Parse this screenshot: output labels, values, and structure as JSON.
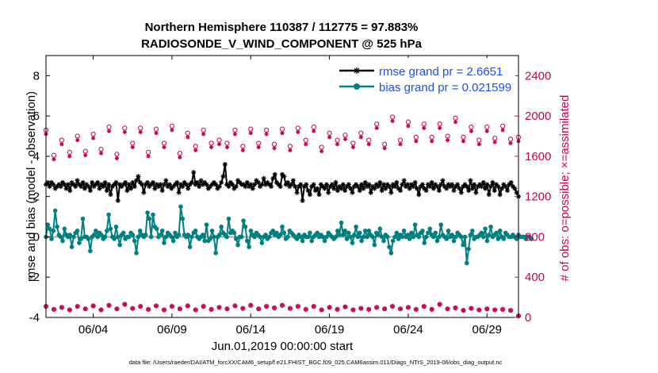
{
  "chart_data": {
    "type": "line",
    "title": "Northern Hemisphere 110387 / 112775 = 97.883%",
    "subtitle": "RADIOSONDE_V_WIND_COMPONENT @ 525 hPa",
    "xlabel": "Jun.01,2019 00:00:00 start",
    "ylabel": "rmse and bias (model - observation)",
    "y2label": "# of obs: o=possible; ×=assimilated",
    "footnote": "data file: /Users/raeder/DAI/ATM_forcXX/CAM6_setup/f.e21.FHIST_BGC.f09_025.CAM6assim.011/Diags_NTrS_2019-06/obs_diag_output.nc",
    "xlim": [
      1.0,
      31.0
    ],
    "ylim": [
      -4,
      9
    ],
    "y2lim": [
      0,
      2600
    ],
    "x_ticks": [
      4,
      9,
      14,
      19,
      24,
      29
    ],
    "x_tick_labels": [
      "06/04",
      "06/09",
      "06/14",
      "06/19",
      "06/24",
      "06/29"
    ],
    "y_ticks": [
      -4,
      -2,
      0,
      2,
      4,
      6,
      8
    ],
    "y_tick_labels": [
      "-4",
      "-2",
      "0",
      "2",
      "4",
      "6",
      "8"
    ],
    "y2_ticks": [
      0,
      400,
      800,
      1200,
      1600,
      2000,
      2400
    ],
    "y2_tick_labels": [
      "0",
      "400",
      "800",
      "1200",
      "1600",
      "2000",
      "2400"
    ],
    "colors": {
      "rmse": "#000000",
      "bias": "#008080",
      "obs": "#c8004f",
      "zero_line": "#aaaaaa",
      "legend_text": "#1f4fe0"
    },
    "legend_position": "top-right",
    "series": [
      {
        "name": "rmse grand pr = 2.6651",
        "axis": "left",
        "values": [
          2.6,
          2.7,
          2.5,
          2.7,
          2.6,
          2.4,
          2.5,
          2.6,
          2.5,
          2.7,
          2.6,
          2.4,
          2.6,
          2.3,
          2.7,
          2.6,
          2.5,
          2.8,
          2.6,
          2.5,
          2.7,
          2.4,
          2.6,
          2.5,
          2.3,
          2.7,
          2.5,
          2.6,
          2.7,
          2.4,
          2.6,
          2.5,
          2.7,
          2.3,
          2.6,
          2.1,
          2.5,
          2.6,
          2.7,
          1.8,
          2.6,
          2.5,
          2.6,
          2.7,
          2.3,
          2.6,
          2.4,
          2.7,
          2.5,
          2.8,
          3.0,
          2.7,
          2.6,
          2.2,
          2.6,
          2.7,
          2.5,
          2.6,
          2.7,
          2.4,
          2.6,
          2.5,
          2.6,
          2.3,
          2.6,
          2.8,
          2.5,
          2.6,
          2.4,
          2.5,
          2.6,
          2.7,
          2.2,
          2.6,
          2.5,
          2.7,
          2.6,
          2.4,
          2.6,
          2.7,
          3.2,
          2.6,
          2.7,
          2.5,
          2.8,
          2.6,
          2.7,
          2.6,
          2.4,
          2.5,
          2.6,
          2.7,
          2.6,
          2.4,
          2.5,
          2.7,
          3.0,
          3.6,
          2.6,
          2.5,
          2.7,
          2.6,
          2.4,
          2.5,
          2.8,
          2.7,
          2.6,
          2.6,
          2.5,
          2.7,
          2.5,
          2.6,
          2.4,
          2.6,
          2.8,
          2.7,
          2.5,
          2.6,
          2.9,
          2.6,
          2.7,
          2.6,
          2.5,
          2.9,
          3.1,
          2.7,
          2.6,
          2.5,
          3.1,
          3.0,
          2.6,
          2.7,
          2.5,
          2.6,
          2.8,
          2.5,
          2.2,
          2.5,
          2.6,
          1.8,
          2.5,
          2.6,
          2.3,
          2.1,
          2.5,
          2.6,
          2.3,
          2.4,
          2.1,
          2.6,
          2.5,
          2.4,
          2.6,
          2.2,
          2.5,
          2.6,
          2.4,
          2.7,
          2.3,
          2.5,
          2.4,
          2.6,
          2.3,
          2.5,
          2.6,
          2.4,
          2.2,
          2.5,
          2.6,
          2.5,
          2.3,
          2.6,
          2.4,
          2.7,
          2.5,
          2.6,
          2.2,
          2.5,
          2.4,
          2.6,
          2.5,
          2.7,
          2.3,
          2.6,
          2.4,
          2.6,
          2.5,
          2.2,
          2.6,
          2.5,
          2.7,
          2.4,
          2.3,
          2.6,
          2.8,
          2.5,
          2.6,
          2.4,
          2.6,
          2.5,
          2.7,
          2.4,
          2.1,
          2.5,
          2.6,
          2.4,
          2.3,
          2.6,
          2.5,
          2.7,
          2.4,
          2.6,
          2.5,
          2.3,
          2.6,
          2.8,
          2.5,
          2.4,
          2.6,
          2.5,
          2.6,
          2.3,
          2.5,
          2.6,
          2.4,
          2.2,
          2.5,
          2.6,
          2.5,
          2.3,
          2.8,
          2.4,
          2.6,
          2.2,
          2.5,
          2.6,
          2.5,
          2.7,
          2.4,
          2.6,
          2.1,
          2.5,
          2.7,
          2.3,
          2.6,
          2.5,
          2.1,
          2.4,
          2.6,
          2.5,
          2.3,
          2.6,
          2.7,
          2.5,
          2.4,
          2.2,
          2.0
        ]
      },
      {
        "name": "bias grand pr = 0.021599",
        "axis": "left",
        "values": [
          0.0,
          0.6,
          0.4,
          -0.1,
          0.3,
          1.3,
          0.5,
          0.1,
          0.0,
          -0.2,
          0.4,
          0.1,
          0.0,
          0.1,
          -0.5,
          0.0,
          0.2,
          0.3,
          -0.3,
          -0.1,
          0.9,
          0.0,
          0.0,
          -0.1,
          -0.7,
          0.0,
          0.1,
          0.3,
          0.0,
          0.2,
          0.1,
          -0.1,
          0.0,
          0.3,
          1.1,
          0.4,
          0.0,
          -0.1,
          0.5,
          0.0,
          -0.4,
          0.1,
          0.2,
          -0.1,
          0.0,
          0.0,
          0.2,
          0.1,
          -0.2,
          -0.8,
          0.0,
          0.3,
          0.1,
          0.0,
          0.1,
          1.2,
          0.9,
          0.0,
          1.1,
          0.5,
          0.4,
          0.0,
          0.1,
          0.3,
          -0.3,
          0.0,
          0.2,
          0.1,
          0.0,
          -0.2,
          0.2,
          0.0,
          0.1,
          1.5,
          0.9,
          0.1,
          0.0,
          0.1,
          -0.5,
          0.0,
          0.2,
          0.3,
          0.0,
          -0.1,
          0.0,
          0.1,
          -0.2,
          0.6,
          -0.2,
          -0.1,
          0.3,
          0.0,
          -0.8,
          0.0,
          0.1,
          0.5,
          0.2,
          0.1,
          0.0,
          0.9,
          0.2,
          0.3,
          0.2,
          -0.1,
          -0.4,
          0.0,
          0.0,
          0.8,
          0.5,
          -0.2,
          -0.5,
          0.3,
          0.1,
          0.0,
          0.2,
          0.1,
          0.0,
          -0.3,
          0.0,
          0.1,
          -0.1,
          0.0,
          0.2,
          0.3,
          0.1,
          0.2,
          0.0,
          0.1,
          0.5,
          0.2,
          -0.1,
          0.0,
          0.3,
          0.2,
          0.1,
          0.0,
          -0.1,
          0.1,
          0.0,
          -0.2,
          0.1,
          0.0,
          0.0,
          0.2,
          -0.2,
          0.0,
          0.1,
          0.2,
          0.0,
          0.1,
          0.0,
          -0.2,
          0.0,
          0.2,
          0.1,
          0.0,
          -0.1,
          0.0,
          0.3,
          0.1,
          0.7,
          0.1,
          0.3,
          -0.1,
          0.2,
          0.0,
          -0.3,
          0.1,
          0.5,
          0.0,
          0.2,
          -0.2,
          0.0,
          0.3,
          0.0,
          0.3,
          0.1,
          0.0,
          -0.4,
          0.2,
          0.1,
          0.4,
          0.0,
          -0.2,
          0.1,
          0.0,
          -0.5,
          -0.8,
          -0.2,
          0.0,
          0.2,
          -0.1,
          0.1,
          0.0,
          0.3,
          0.0,
          0.1,
          -0.1,
          0.2,
          0.0,
          0.6,
          0.1,
          0.0,
          0.2,
          0.3,
          -0.3,
          0.0,
          0.2,
          0.4,
          0.1,
          0.0,
          0.2,
          -0.2,
          0.0,
          0.6,
          0.1,
          0.0,
          -0.1,
          0.3,
          0.0,
          0.1,
          -0.2,
          0.0,
          0.2,
          0.1,
          0.0,
          -0.4,
          0.0,
          -1.3,
          -0.6,
          0.1,
          0.3,
          -0.1,
          0.0,
          0.0,
          0.1,
          0.2,
          0.0,
          0.4,
          -0.2,
          0.1,
          0.5,
          0.0,
          0.1,
          0.2,
          -0.1,
          0.3,
          0.0,
          -0.1,
          0.2,
          0.1,
          0.0,
          0.0,
          0.1,
          0.0,
          -0.1,
          0.1,
          0.0,
          0.0,
          0.0,
          -0.1,
          0.0,
          0.0,
          -0.1
        ]
      }
    ],
    "obs_possible": {
      "axis": "right",
      "x": [
        1.0,
        1.5,
        2.0,
        2.5,
        3.0,
        3.5,
        4.0,
        4.5,
        5.0,
        5.5,
        6.0,
        6.5,
        7.0,
        7.5,
        8.0,
        8.5,
        9.0,
        9.5,
        10.0,
        10.5,
        11.0,
        11.5,
        12.0,
        12.5,
        13.0,
        13.5,
        14.0,
        14.5,
        15.0,
        15.5,
        16.0,
        16.5,
        17.0,
        17.5,
        18.0,
        18.5,
        19.0,
        19.5,
        20.0,
        20.5,
        21.0,
        21.5,
        22.0,
        22.5,
        23.0,
        23.5,
        24.0,
        24.5,
        25.0,
        25.5,
        26.0,
        26.5,
        27.0,
        27.5,
        28.0,
        28.5,
        29.0,
        29.5,
        30.0,
        30.5,
        31.0
      ],
      "values": [
        1860,
        1610,
        1760,
        1640,
        1800,
        1650,
        1820,
        1670,
        1890,
        1620,
        1880,
        1730,
        1880,
        1640,
        1870,
        1730,
        1900,
        1630,
        1830,
        1700,
        1860,
        1730,
        1760,
        1730,
        1860,
        1700,
        1870,
        1730,
        1860,
        1720,
        1870,
        1700,
        1880,
        1760,
        1890,
        1690,
        1830,
        1760,
        1810,
        1730,
        1830,
        1760,
        1920,
        1720,
        1990,
        1760,
        1940,
        1790,
        1920,
        1790,
        1920,
        1800,
        1980,
        1790,
        1890,
        1760,
        1890,
        1780,
        1900,
        1770,
        1790
      ],
      "assimilated": [
        1820,
        1570,
        1720,
        1600,
        1760,
        1610,
        1780,
        1630,
        1850,
        1580,
        1840,
        1690,
        1840,
        1600,
        1830,
        1690,
        1860,
        1590,
        1790,
        1660,
        1820,
        1690,
        1720,
        1690,
        1820,
        1660,
        1830,
        1690,
        1820,
        1680,
        1830,
        1660,
        1840,
        1720,
        1850,
        1650,
        1790,
        1720,
        1770,
        1690,
        1790,
        1720,
        1880,
        1680,
        1950,
        1720,
        1900,
        1750,
        1880,
        1750,
        1880,
        1760,
        1940,
        1750,
        1850,
        1720,
        1850,
        1740,
        1860,
        1730,
        1750
      ]
    },
    "obs_bottom": {
      "axis": "right",
      "x": [
        1.0,
        1.5,
        2.0,
        2.5,
        3.0,
        3.5,
        4.0,
        4.5,
        5.0,
        5.5,
        6.0,
        6.5,
        7.0,
        7.5,
        8.0,
        8.5,
        9.0,
        9.5,
        10.0,
        10.5,
        11.0,
        11.5,
        12.0,
        12.5,
        13.0,
        13.5,
        14.0,
        14.5,
        15.0,
        15.5,
        16.0,
        16.5,
        17.0,
        17.5,
        18.0,
        18.5,
        19.0,
        19.5,
        20.0,
        20.5,
        21.0,
        21.5,
        22.0,
        22.5,
        23.0,
        23.5,
        24.0,
        24.5,
        25.0,
        25.5,
        26.0,
        26.5,
        27.0,
        27.5,
        28.0,
        28.5,
        29.0,
        29.5,
        30.0,
        30.5,
        31.0
      ],
      "values": [
        110,
        80,
        100,
        75,
        110,
        85,
        115,
        75,
        120,
        85,
        130,
        90,
        110,
        80,
        115,
        75,
        110,
        85,
        115,
        75,
        110,
        80,
        100,
        85,
        115,
        90,
        120,
        85,
        110,
        95,
        120,
        90,
        110,
        80,
        110,
        75,
        100,
        80,
        105,
        75,
        90,
        80,
        100,
        85,
        110,
        85,
        100,
        80,
        110,
        80,
        130,
        85,
        95,
        70,
        90,
        75,
        85,
        75,
        80,
        70,
        15
      ]
    }
  }
}
